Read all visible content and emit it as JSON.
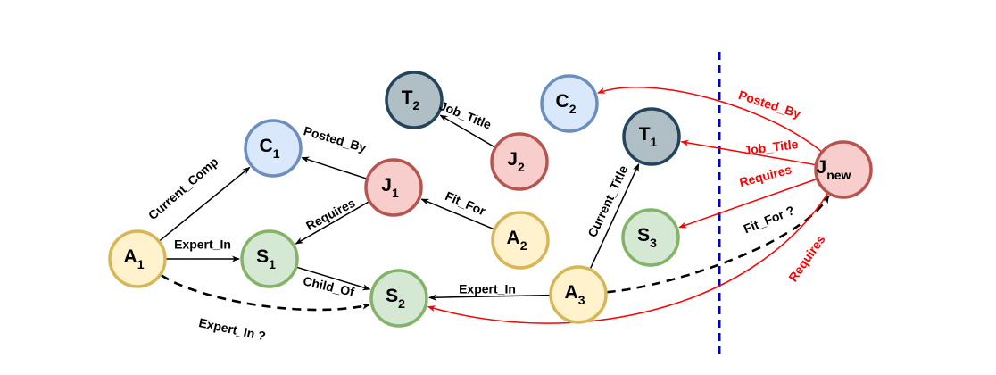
{
  "colors": {
    "company": {
      "fill": "#dae8fc",
      "stroke": "#6c8ebf"
    },
    "title": {
      "fill": "#b0bec5",
      "stroke": "#23445d"
    },
    "job": {
      "fill": "#f8cecc",
      "stroke": "#b85450"
    },
    "applicant": {
      "fill": "#fff2cc",
      "stroke": "#d6b656"
    },
    "skill": {
      "fill": "#d5e8d4",
      "stroke": "#82b366"
    },
    "black_edge": "#000000",
    "red_edge": "#ff0000",
    "divider": "#0000cc"
  },
  "nodes": [
    {
      "id": "T2",
      "label": "T",
      "sub": "2",
      "kind": "title"
    },
    {
      "id": "C2",
      "label": "C",
      "sub": "2",
      "kind": "company"
    },
    {
      "id": "T1",
      "label": "T",
      "sub": "1",
      "kind": "title"
    },
    {
      "id": "C1",
      "label": "C",
      "sub": "1",
      "kind": "company"
    },
    {
      "id": "J2",
      "label": "J",
      "sub": "2",
      "kind": "job"
    },
    {
      "id": "J1",
      "label": "J",
      "sub": "1",
      "kind": "job"
    },
    {
      "id": "Jnew",
      "label": "J",
      "sub": "new",
      "kind": "job"
    },
    {
      "id": "A1",
      "label": "A",
      "sub": "1",
      "kind": "applicant"
    },
    {
      "id": "S1",
      "label": "S",
      "sub": "1",
      "kind": "skill"
    },
    {
      "id": "A2",
      "label": "A",
      "sub": "2",
      "kind": "applicant"
    },
    {
      "id": "S3",
      "label": "S",
      "sub": "3",
      "kind": "skill"
    },
    {
      "id": "S2",
      "label": "S",
      "sub": "2",
      "kind": "skill"
    },
    {
      "id": "A3",
      "label": "A",
      "sub": "3",
      "kind": "applicant"
    }
  ],
  "edges": [
    {
      "from": "A1",
      "to": "C1",
      "label": "Current_Comp",
      "color": "black",
      "style": "solid"
    },
    {
      "from": "J1",
      "to": "C1",
      "label": "Posted_By",
      "color": "black",
      "style": "solid"
    },
    {
      "from": "J2",
      "to": "T2",
      "label": "Job_Title",
      "color": "black",
      "style": "solid"
    },
    {
      "from": "A2",
      "to": "J1",
      "label": "Fit_For",
      "color": "black",
      "style": "solid"
    },
    {
      "from": "J1",
      "to": "S1",
      "label": "Requires",
      "color": "black",
      "style": "solid"
    },
    {
      "from": "A1",
      "to": "S1",
      "label": "Expert_In",
      "color": "black",
      "style": "solid"
    },
    {
      "from": "S1",
      "to": "S2",
      "label": "Child_Of",
      "color": "black",
      "style": "solid"
    },
    {
      "from": "A3",
      "to": "S2",
      "label": "Expert_In",
      "color": "black",
      "style": "solid"
    },
    {
      "from": "A3",
      "to": "T1",
      "label": "Current_Title",
      "color": "black",
      "style": "solid"
    },
    {
      "from": "A1",
      "to": "S2",
      "label": "Expert_In ?",
      "color": "black",
      "style": "dashed"
    },
    {
      "from": "A3",
      "to": "Jnew",
      "label": "Fit_For ?",
      "color": "black",
      "style": "dashed"
    },
    {
      "from": "Jnew",
      "to": "C2",
      "label": "Posted_By",
      "color": "red",
      "style": "solid"
    },
    {
      "from": "Jnew",
      "to": "T1",
      "label": "Job_Title",
      "color": "red",
      "style": "solid"
    },
    {
      "from": "Jnew",
      "to": "S3",
      "label": "Requires",
      "color": "red",
      "style": "solid"
    },
    {
      "from": "Jnew",
      "to": "S2",
      "label": "Requires",
      "color": "red",
      "style": "solid"
    }
  ]
}
